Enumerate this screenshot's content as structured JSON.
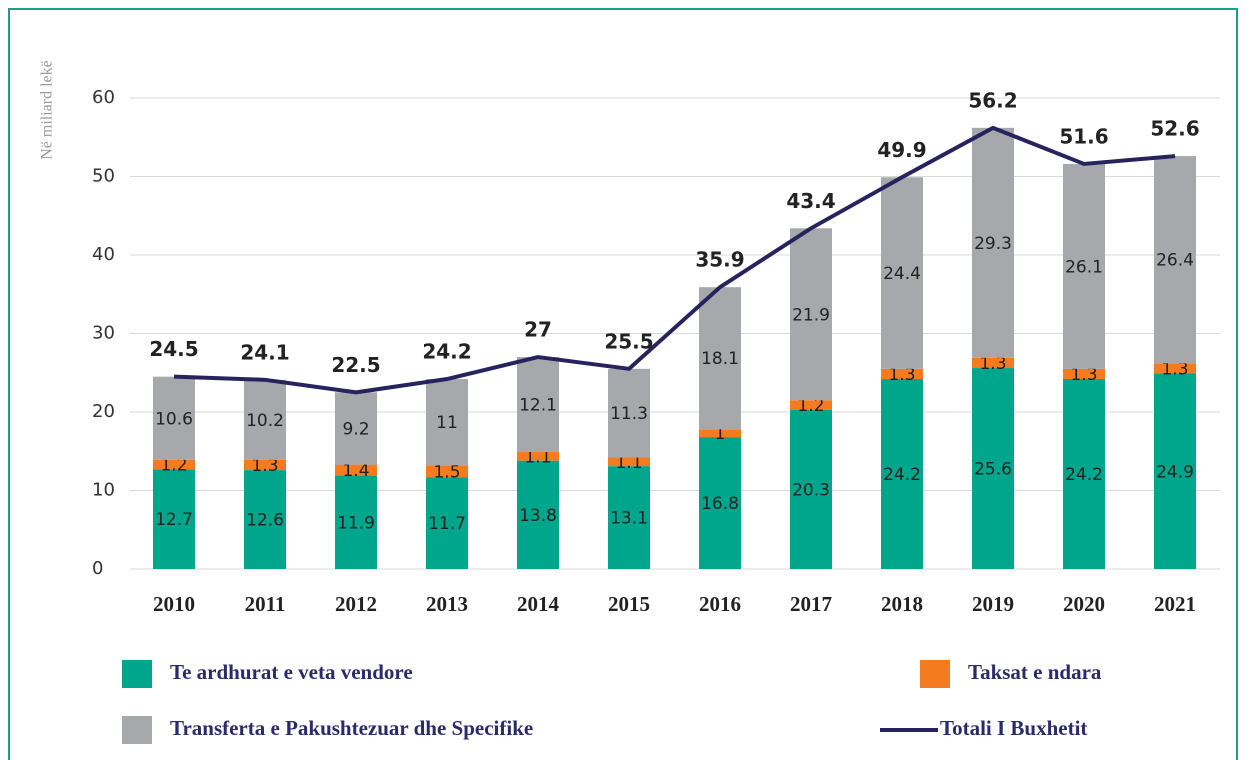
{
  "chart_data": {
    "type": "bar",
    "stacked": true,
    "y_axis_label": "Në miliard lekë",
    "categories": [
      "2010",
      "2011",
      "2012",
      "2013",
      "2014",
      "2015",
      "2016",
      "2017",
      "2018",
      "2019",
      "2020",
      "2021"
    ],
    "series": [
      {
        "name": "Te ardhurat e veta vendore",
        "color": "#00a68c",
        "values": [
          12.7,
          12.6,
          11.9,
          11.7,
          13.8,
          13.1,
          16.8,
          20.3,
          24.2,
          25.6,
          24.2,
          24.9
        ]
      },
      {
        "name": "Taksat e ndara",
        "color": "#f47b20",
        "values": [
          1.2,
          1.3,
          1.4,
          1.5,
          1.1,
          1.1,
          1,
          1.2,
          1.3,
          1.3,
          1.3,
          1.3
        ]
      },
      {
        "name": "Transferta e Pakushtezuar dhe Specifike",
        "color": "#a7a8ac",
        "values": [
          10.6,
          10.2,
          9.2,
          11,
          12.1,
          11.3,
          18.1,
          21.9,
          24.4,
          29.3,
          26.1,
          26.4
        ]
      },
      {
        "name": "Totali I Buxhetit",
        "type": "line",
        "color": "#27235e",
        "values": [
          24.5,
          24.1,
          22.5,
          24.2,
          27,
          25.5,
          35.9,
          43.4,
          49.9,
          56.2,
          51.6,
          52.6
        ]
      }
    ],
    "ylim": [
      0,
      60
    ],
    "yticks": [
      0,
      10,
      20,
      30,
      40,
      50,
      60
    ],
    "grid": true,
    "legend": "bottom"
  }
}
